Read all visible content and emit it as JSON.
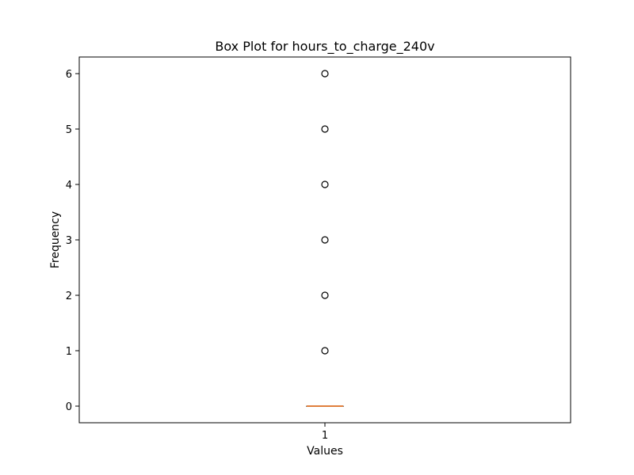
{
  "chart_data": {
    "type": "box",
    "title": "Box Plot for hours_to_charge_240v",
    "xlabel": "Values",
    "ylabel": "Frequency",
    "categories": [
      "1"
    ],
    "ylim": [
      -0.3,
      6.3
    ],
    "yticks": [
      0,
      1,
      2,
      3,
      4,
      5,
      6
    ],
    "ytick_labels": [
      "0",
      "1",
      "2",
      "3",
      "4",
      "5",
      "6"
    ],
    "grid": false,
    "box": {
      "min": 0,
      "q1": 0,
      "median": 0,
      "q3": 0,
      "max": 0
    },
    "outliers": [
      1,
      2,
      3,
      4,
      5,
      6
    ],
    "colors": {
      "median": "#e07f3c",
      "outlier_edge": "#000000",
      "box": "#000000"
    }
  }
}
